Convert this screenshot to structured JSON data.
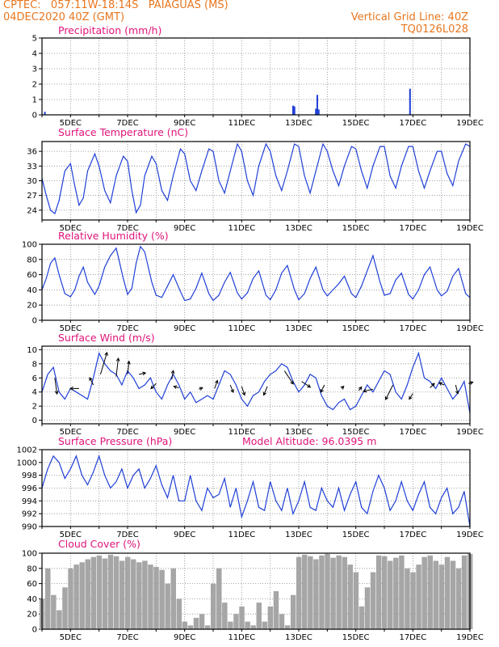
{
  "header": {
    "line1": "CPTEC:   057:11W-18:14S   PAIAGUAS (MS)",
    "line2": "04DEC2020 40Z (GMT)",
    "right1": "Vertical Grid Line: 40Z",
    "right2": "TQ0126L028"
  },
  "colors": {
    "header": "#e8761e",
    "title": "#e0147a",
    "series": "#1f3fd6",
    "cloud": "#a6a6a6",
    "arrow": "#000000"
  },
  "x_axis": {
    "start_day": 4,
    "end_day": 19,
    "tick_labels": [
      "5DEC",
      "7DEC",
      "9DEC",
      "11DEC",
      "13DEC",
      "15DEC",
      "17DEC",
      "19DEC"
    ]
  },
  "chart_data": [
    {
      "id": "precip",
      "type": "bar",
      "title": "Precipitation (mm/h)",
      "ylim": [
        0,
        5
      ],
      "yticks": [
        "0",
        "1",
        "2",
        "3",
        "4",
        "5"
      ],
      "x": [
        4.1,
        12.8,
        12.85,
        13.6,
        13.65,
        13.7,
        16.9
      ],
      "values": [
        0.2,
        0.6,
        0.55,
        0.4,
        1.3,
        0.35,
        1.7
      ]
    },
    {
      "id": "temp",
      "type": "line",
      "title": "Surface Temperature (nC)",
      "ylim": [
        22,
        38
      ],
      "yticks": [
        "24",
        "27",
        "30",
        "33",
        "36"
      ],
      "ytick_values": [
        24,
        27,
        30,
        33,
        36
      ],
      "x": [
        4.0,
        4.15,
        4.3,
        4.45,
        4.6,
        4.8,
        5.0,
        5.15,
        5.3,
        5.45,
        5.6,
        5.85,
        6.0,
        6.2,
        6.4,
        6.6,
        6.85,
        7.0,
        7.15,
        7.3,
        7.45,
        7.6,
        7.85,
        8.0,
        8.2,
        8.4,
        8.6,
        8.85,
        9.0,
        9.2,
        9.4,
        9.6,
        9.85,
        10.0,
        10.2,
        10.4,
        10.6,
        10.85,
        11.0,
        11.2,
        11.4,
        11.6,
        11.85,
        12.0,
        12.2,
        12.4,
        12.6,
        12.85,
        13.0,
        13.2,
        13.4,
        13.6,
        13.85,
        14.0,
        14.2,
        14.4,
        14.6,
        14.85,
        15.0,
        15.2,
        15.4,
        15.6,
        15.85,
        16.0,
        16.2,
        16.4,
        16.6,
        16.85,
        17.0,
        17.2,
        17.4,
        17.6,
        17.85,
        18.0,
        18.2,
        18.4,
        18.6,
        18.85,
        19.0
      ],
      "values": [
        30.5,
        27,
        24,
        23.3,
        26,
        32,
        33.5,
        29,
        25,
        26.5,
        32,
        35.5,
        33,
        28,
        25.5,
        31,
        35,
        34,
        28,
        23.5,
        25,
        31,
        35,
        33.5,
        28,
        26,
        31,
        36.5,
        35.5,
        30,
        28,
        32,
        36.5,
        36,
        30,
        27.5,
        32,
        37.5,
        36,
        30,
        27,
        33,
        37.5,
        36,
        31,
        28,
        32,
        37.5,
        37,
        31,
        27.5,
        32,
        37.5,
        36,
        32,
        29,
        33,
        37,
        36.5,
        32,
        28.5,
        33,
        37,
        37,
        31,
        28.5,
        33,
        37,
        37,
        32,
        28.5,
        32,
        36,
        36,
        31.5,
        29,
        34,
        37.5,
        37
      ]
    },
    {
      "id": "rh",
      "type": "line",
      "title": "Relative Humidity (%)",
      "ylim": [
        0,
        100
      ],
      "yticks": [
        "0",
        "20",
        "40",
        "60",
        "80",
        "100"
      ],
      "ytick_values": [
        0,
        20,
        40,
        60,
        80,
        100
      ],
      "x": [
        4.0,
        4.15,
        4.3,
        4.45,
        4.6,
        4.8,
        5.0,
        5.15,
        5.3,
        5.45,
        5.6,
        5.85,
        6.0,
        6.2,
        6.4,
        6.6,
        6.85,
        7.0,
        7.15,
        7.3,
        7.45,
        7.6,
        7.85,
        8.0,
        8.2,
        8.4,
        8.6,
        8.85,
        9.0,
        9.2,
        9.4,
        9.6,
        9.85,
        10.0,
        10.2,
        10.4,
        10.6,
        10.85,
        11.0,
        11.2,
        11.4,
        11.6,
        11.85,
        12.0,
        12.2,
        12.4,
        12.6,
        12.85,
        13.0,
        13.2,
        13.4,
        13.6,
        13.85,
        14.0,
        14.2,
        14.4,
        14.6,
        14.85,
        15.0,
        15.2,
        15.4,
        15.6,
        15.85,
        16.0,
        16.2,
        16.4,
        16.6,
        16.85,
        17.0,
        17.2,
        17.4,
        17.6,
        17.85,
        18.0,
        18.2,
        18.4,
        18.6,
        18.85,
        19.0
      ],
      "values": [
        40,
        55,
        75,
        82,
        60,
        35,
        31,
        40,
        58,
        70,
        50,
        34,
        45,
        70,
        85,
        95,
        55,
        34,
        42,
        75,
        97,
        90,
        50,
        33,
        30,
        45,
        60,
        38,
        26,
        28,
        42,
        62,
        35,
        26,
        33,
        50,
        63,
        36,
        28,
        36,
        55,
        65,
        33,
        27,
        40,
        62,
        72,
        40,
        27,
        35,
        55,
        70,
        40,
        32,
        40,
        48,
        58,
        35,
        30,
        45,
        65,
        85,
        50,
        33,
        35,
        53,
        62,
        34,
        28,
        40,
        60,
        70,
        40,
        32,
        38,
        58,
        68,
        35,
        30
      ]
    },
    {
      "id": "wind",
      "type": "line",
      "title": "Surface Wind (m/s)",
      "ylim": [
        -0.5,
        10.5
      ],
      "yticks": [
        "0",
        "2",
        "4",
        "6",
        "8",
        "10"
      ],
      "ytick_values": [
        0,
        2,
        4,
        6,
        8,
        10
      ],
      "x": [
        4.0,
        4.2,
        4.4,
        4.6,
        4.8,
        5.0,
        5.2,
        5.4,
        5.6,
        5.8,
        6.0,
        6.2,
        6.4,
        6.6,
        6.8,
        7.0,
        7.2,
        7.4,
        7.6,
        7.8,
        8.0,
        8.2,
        8.4,
        8.6,
        8.8,
        9.0,
        9.2,
        9.4,
        9.6,
        9.8,
        10.0,
        10.2,
        10.4,
        10.6,
        10.8,
        11.0,
        11.2,
        11.4,
        11.6,
        11.8,
        12.0,
        12.2,
        12.4,
        12.6,
        12.8,
        13.0,
        13.2,
        13.4,
        13.6,
        13.8,
        14.0,
        14.2,
        14.4,
        14.6,
        14.8,
        15.0,
        15.2,
        15.4,
        15.6,
        15.8,
        16.0,
        16.2,
        16.4,
        16.6,
        16.8,
        17.0,
        17.2,
        17.4,
        17.6,
        17.8,
        18.0,
        18.2,
        18.4,
        18.6,
        18.8,
        19.0
      ],
      "values": [
        4,
        6.5,
        7.5,
        4,
        3,
        4.5,
        4,
        3.5,
        3,
        6,
        9.5,
        8,
        7,
        6.5,
        5,
        7,
        6,
        4.5,
        5,
        6,
        4,
        3,
        5,
        6.5,
        5,
        3,
        4,
        2.5,
        3,
        3.5,
        3,
        5,
        7,
        6.5,
        5,
        3,
        2,
        3.5,
        4,
        5.5,
        6.5,
        7,
        8,
        7.5,
        5.5,
        4,
        5,
        6.5,
        6,
        3.5,
        2,
        1.5,
        2.5,
        3,
        1.5,
        2,
        3.5,
        5,
        4,
        5.5,
        7,
        6.5,
        4,
        3,
        5,
        7.5,
        9.5,
        6,
        5.5,
        4.5,
        6,
        4.5,
        3,
        4,
        5.5,
        1
      ],
      "arrows": [
        {
          "x": 4.45,
          "v": 6.0,
          "u": 0.3,
          "w": -2.2
        },
        {
          "x": 5.3,
          "v": 4.5,
          "u": -1.2,
          "w": 0.0
        },
        {
          "x": 5.8,
          "v": 5.0,
          "u": -0.5,
          "w": 1.0
        },
        {
          "x": 6.05,
          "v": 6.5,
          "u": 0.9,
          "w": 3.0
        },
        {
          "x": 6.6,
          "v": 6.2,
          "u": 0.3,
          "w": 2.5
        },
        {
          "x": 7.0,
          "v": 6.5,
          "u": 0.2,
          "w": 1.8
        },
        {
          "x": 7.4,
          "v": 6.5,
          "u": 0.9,
          "w": 0.2
        },
        {
          "x": 8.0,
          "v": 5.2,
          "u": -0.7,
          "w": -0.7
        },
        {
          "x": 8.55,
          "v": 5.8,
          "u": 0.2,
          "w": 1.2
        },
        {
          "x": 8.8,
          "v": 4.6,
          "u": -0.7,
          "w": 0.2
        },
        {
          "x": 9.5,
          "v": 4.4,
          "u": 0.5,
          "w": 0.2
        },
        {
          "x": 10.05,
          "v": 4.5,
          "u": 0.4,
          "w": 1.1
        },
        {
          "x": 10.6,
          "v": 5.0,
          "u": 0.4,
          "w": -1.0
        },
        {
          "x": 11.0,
          "v": 4.8,
          "u": 0.4,
          "w": -1.2
        },
        {
          "x": 11.9,
          "v": 4.8,
          "u": -0.5,
          "w": -1.2
        },
        {
          "x": 12.5,
          "v": 7.0,
          "u": 1.2,
          "w": -1.8
        },
        {
          "x": 13.1,
          "v": 5.5,
          "u": 1.2,
          "w": -0.8
        },
        {
          "x": 13.9,
          "v": 5.0,
          "u": -0.5,
          "w": -1.0
        },
        {
          "x": 14.5,
          "v": 4.5,
          "u": 0.3,
          "w": 0.3
        },
        {
          "x": 15.1,
          "v": 4.2,
          "u": 0.4,
          "w": 0.5
        },
        {
          "x": 15.6,
          "v": 4.4,
          "u": -1.3,
          "w": -0.3
        },
        {
          "x": 16.3,
          "v": 5.0,
          "u": -1.0,
          "w": -2.0
        },
        {
          "x": 17.0,
          "v": 3.8,
          "u": -0.5,
          "w": -0.8
        },
        {
          "x": 17.6,
          "v": 4.6,
          "u": 0.6,
          "w": 0.6
        },
        {
          "x": 18.1,
          "v": 5.0,
          "u": -0.7,
          "w": 0.3
        },
        {
          "x": 18.5,
          "v": 5.0,
          "u": 0.3,
          "w": -1.2
        },
        {
          "x": 18.95,
          "v": 5.2,
          "u": 0.6,
          "w": 0.2
        }
      ]
    },
    {
      "id": "pres",
      "type": "line",
      "title": "Surface Pressure (hPa)",
      "annotation": "Model Altitude: 96.0395 m",
      "ylim": [
        990,
        1002
      ],
      "yticks": [
        "990",
        "992",
        "994",
        "996",
        "998",
        "1000",
        "1002"
      ],
      "ytick_values": [
        990,
        992,
        994,
        996,
        998,
        1000,
        1002
      ],
      "x": [
        4.0,
        4.2,
        4.4,
        4.6,
        4.8,
        5.0,
        5.2,
        5.4,
        5.6,
        5.8,
        6.0,
        6.2,
        6.4,
        6.6,
        6.8,
        7.0,
        7.2,
        7.4,
        7.6,
        7.8,
        8.0,
        8.2,
        8.4,
        8.6,
        8.8,
        9.0,
        9.2,
        9.4,
        9.6,
        9.8,
        10.0,
        10.2,
        10.4,
        10.6,
        10.8,
        11.0,
        11.2,
        11.4,
        11.6,
        11.8,
        12.0,
        12.2,
        12.4,
        12.6,
        12.8,
        13.0,
        13.2,
        13.4,
        13.6,
        13.8,
        14.0,
        14.2,
        14.4,
        14.6,
        14.8,
        15.0,
        15.2,
        15.4,
        15.6,
        15.8,
        16.0,
        16.2,
        16.4,
        16.6,
        16.8,
        17.0,
        17.2,
        17.4,
        17.6,
        17.8,
        18.0,
        18.2,
        18.4,
        18.6,
        18.8,
        19.0
      ],
      "values": [
        996,
        999,
        1001,
        1000,
        997.5,
        999,
        1001,
        998,
        996.5,
        998.5,
        1001,
        998,
        996,
        997,
        999,
        996,
        998,
        999,
        996,
        997.5,
        999.5,
        996.5,
        994.5,
        998,
        994,
        994,
        998,
        994,
        992.5,
        996,
        994.5,
        995,
        997.5,
        993,
        996,
        991.5,
        994,
        997,
        993,
        992.5,
        997,
        994,
        992.5,
        996,
        992,
        994,
        997,
        993,
        992.5,
        996,
        994,
        993,
        996,
        992.5,
        995,
        997,
        993,
        992,
        995.5,
        998,
        996,
        992.5,
        994,
        997,
        994,
        992.5,
        995,
        997,
        993,
        992,
        994.5,
        996,
        992,
        993,
        995.5,
        990
      ]
    },
    {
      "id": "cloud",
      "type": "area",
      "title": "Cloud Cover (%)",
      "ylim": [
        0,
        100
      ],
      "yticks": [
        "0",
        "20",
        "40",
        "60",
        "80",
        "100"
      ],
      "ytick_values": [
        0,
        20,
        40,
        60,
        80,
        100
      ],
      "x": [
        4.0,
        4.2,
        4.4,
        4.6,
        4.8,
        5.0,
        5.2,
        5.4,
        5.6,
        5.8,
        6.0,
        6.2,
        6.4,
        6.6,
        6.8,
        7.0,
        7.2,
        7.4,
        7.6,
        7.8,
        8.0,
        8.2,
        8.4,
        8.6,
        8.8,
        9.0,
        9.2,
        9.4,
        9.6,
        9.8,
        10.0,
        10.2,
        10.4,
        10.6,
        10.8,
        11.0,
        11.2,
        11.4,
        11.6,
        11.8,
        12.0,
        12.2,
        12.4,
        12.6,
        12.8,
        13.0,
        13.2,
        13.4,
        13.6,
        13.8,
        14.0,
        14.2,
        14.4,
        14.6,
        14.8,
        15.0,
        15.2,
        15.4,
        15.6,
        15.8,
        16.0,
        16.2,
        16.4,
        16.6,
        16.8,
        17.0,
        17.2,
        17.4,
        17.6,
        17.8,
        18.0,
        18.2,
        18.4,
        18.6,
        18.8,
        19.0
      ],
      "values": [
        40,
        80,
        45,
        25,
        55,
        80,
        85,
        88,
        92,
        95,
        97,
        93,
        98,
        96,
        90,
        95,
        92,
        88,
        90,
        85,
        82,
        78,
        60,
        80,
        40,
        10,
        5,
        15,
        20,
        5,
        60,
        80,
        35,
        10,
        20,
        30,
        10,
        5,
        35,
        10,
        30,
        50,
        20,
        5,
        45,
        95,
        98,
        96,
        92,
        97,
        99,
        94,
        97,
        95,
        85,
        75,
        30,
        55,
        75,
        97,
        96,
        90,
        94,
        97,
        80,
        75,
        85,
        95,
        97,
        90,
        85,
        95,
        90,
        80,
        97,
        99
      ]
    }
  ]
}
